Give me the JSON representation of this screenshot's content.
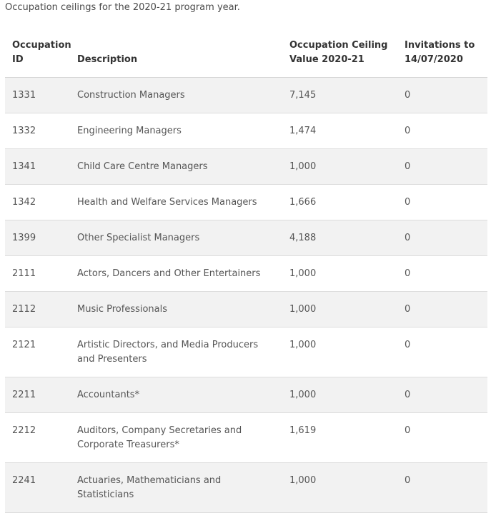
{
  "intro_text": "Occupation ceilings for the 2020-21 program year.",
  "table": {
    "headers": {
      "id": "Occupation ID",
      "description": "Description",
      "ceiling": "Occupation Ceiling Value 2020-21",
      "invitations": "Invitations to 14/07/2020"
    },
    "rows": [
      {
        "id": "1331",
        "description": "Construction Managers",
        "ceiling": "7,145",
        "invitations": "0"
      },
      {
        "id": "1332",
        "description": "Engineering Managers",
        "ceiling": "1,474",
        "invitations": "0"
      },
      {
        "id": "1341",
        "description": "Child Care Centre Managers",
        "ceiling": "1,000",
        "invitations": "0"
      },
      {
        "id": "1342",
        "description": "Health and Welfare Services Managers",
        "ceiling": "1,666",
        "invitations": "0"
      },
      {
        "id": "1399",
        "description": "Other Specialist Managers",
        "ceiling": "4,188",
        "invitations": "0"
      },
      {
        "id": "2111",
        "description": "Actors, Dancers and Other Entertainers",
        "ceiling": "1,000",
        "invitations": "0"
      },
      {
        "id": "2112",
        "description": "Music Professionals",
        "ceiling": "1,000",
        "invitations": "0"
      },
      {
        "id": "2121",
        "description": "Artistic Directors, and Media Producers and Presenters",
        "ceiling": "1,000",
        "invitations": "0"
      },
      {
        "id": "2211",
        "description": "Accountants*",
        "ceiling": "1,000",
        "invitations": "0"
      },
      {
        "id": "2212",
        "description": "Auditors, Company Secretaries and Corporate Treasurers*",
        "ceiling": "1,619",
        "invitations": "0"
      },
      {
        "id": "2241",
        "description": "Actuaries, Mathematicians and Statisticians",
        "ceiling": "1,000",
        "invitations": "0"
      }
    ]
  }
}
